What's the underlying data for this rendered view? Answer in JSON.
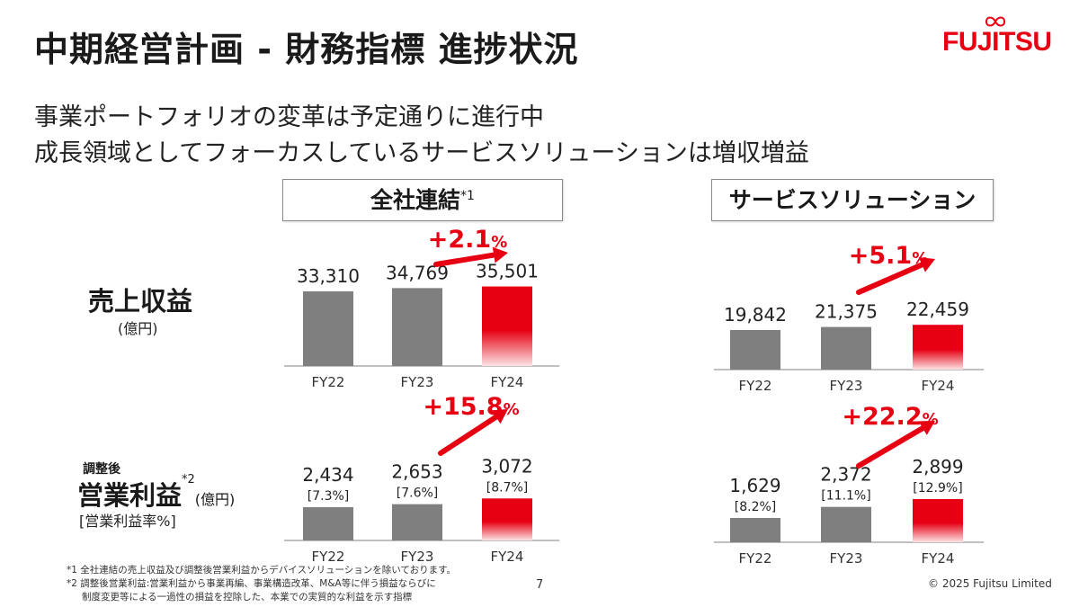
{
  "title": "中期経営計画 - 財務指標 進捗状況",
  "logo": {
    "text": "FUJITSU",
    "color": "#e60012"
  },
  "subtitle_lines": [
    "事業ポートフォリオの変革は予定通りに進行中",
    "成長領域としてフォーカスしているサービスソリューションは増収増益"
  ],
  "columns": {
    "consolidated": {
      "label": "全社連結",
      "note": "*1"
    },
    "service": {
      "label": "サービスソリューション"
    }
  },
  "rows": {
    "revenue": {
      "label": "売上収益",
      "unit": "(億円)"
    },
    "profit": {
      "prefix": "調整後",
      "label": "営業利益",
      "note": "*2",
      "unit": "(億円)",
      "sub": "[営業利益率%]"
    }
  },
  "colors": {
    "bar_grey": "#7f7f7f",
    "bar_red": "#e60012",
    "accent": "#e60012"
  },
  "chart_data": [
    {
      "id": "revenue-consolidated",
      "type": "bar",
      "categories": [
        "FY22",
        "FY23",
        "FY24"
      ],
      "values": [
        33310,
        34769,
        35501
      ],
      "value_labels": [
        "33,310",
        "34,769",
        "35,501"
      ],
      "growth": "+2.1",
      "growth_unit": "%"
    },
    {
      "id": "revenue-service",
      "type": "bar",
      "categories": [
        "FY22",
        "FY23",
        "FY24"
      ],
      "values": [
        19842,
        21375,
        22459
      ],
      "value_labels": [
        "19,842",
        "21,375",
        "22,459"
      ],
      "growth": "+5.1",
      "growth_unit": "%"
    },
    {
      "id": "profit-consolidated",
      "type": "bar",
      "categories": [
        "FY22",
        "FY23",
        "FY24"
      ],
      "values": [
        2434,
        2653,
        3072
      ],
      "value_labels": [
        "2,434",
        "2,653",
        "3,072"
      ],
      "margins": [
        "[7.3%]",
        "[7.6%]",
        "[8.7%]"
      ],
      "growth": "+15.8",
      "growth_unit": "%"
    },
    {
      "id": "profit-service",
      "type": "bar",
      "categories": [
        "FY22",
        "FY23",
        "FY24"
      ],
      "values": [
        1629,
        2372,
        2899
      ],
      "value_labels": [
        "1,629",
        "2,372",
        "2,899"
      ],
      "margins": [
        "[8.2%]",
        "[11.1%]",
        "[12.9%]"
      ],
      "growth": "+22.2",
      "growth_unit": "%"
    }
  ],
  "footnotes": [
    "*1  全社連結の売上収益及び調整後営業利益からデバイスソリューションを除いております。",
    "*2  調整後営業利益:営業利益から事業再編、事業構造改革、M&A等に伴う損益ならびに",
    "制度変更等による一過性の損益を控除した、本業での実質的な利益を示す指標"
  ],
  "page_number": "7",
  "copyright": "© 2025 Fujitsu Limited"
}
